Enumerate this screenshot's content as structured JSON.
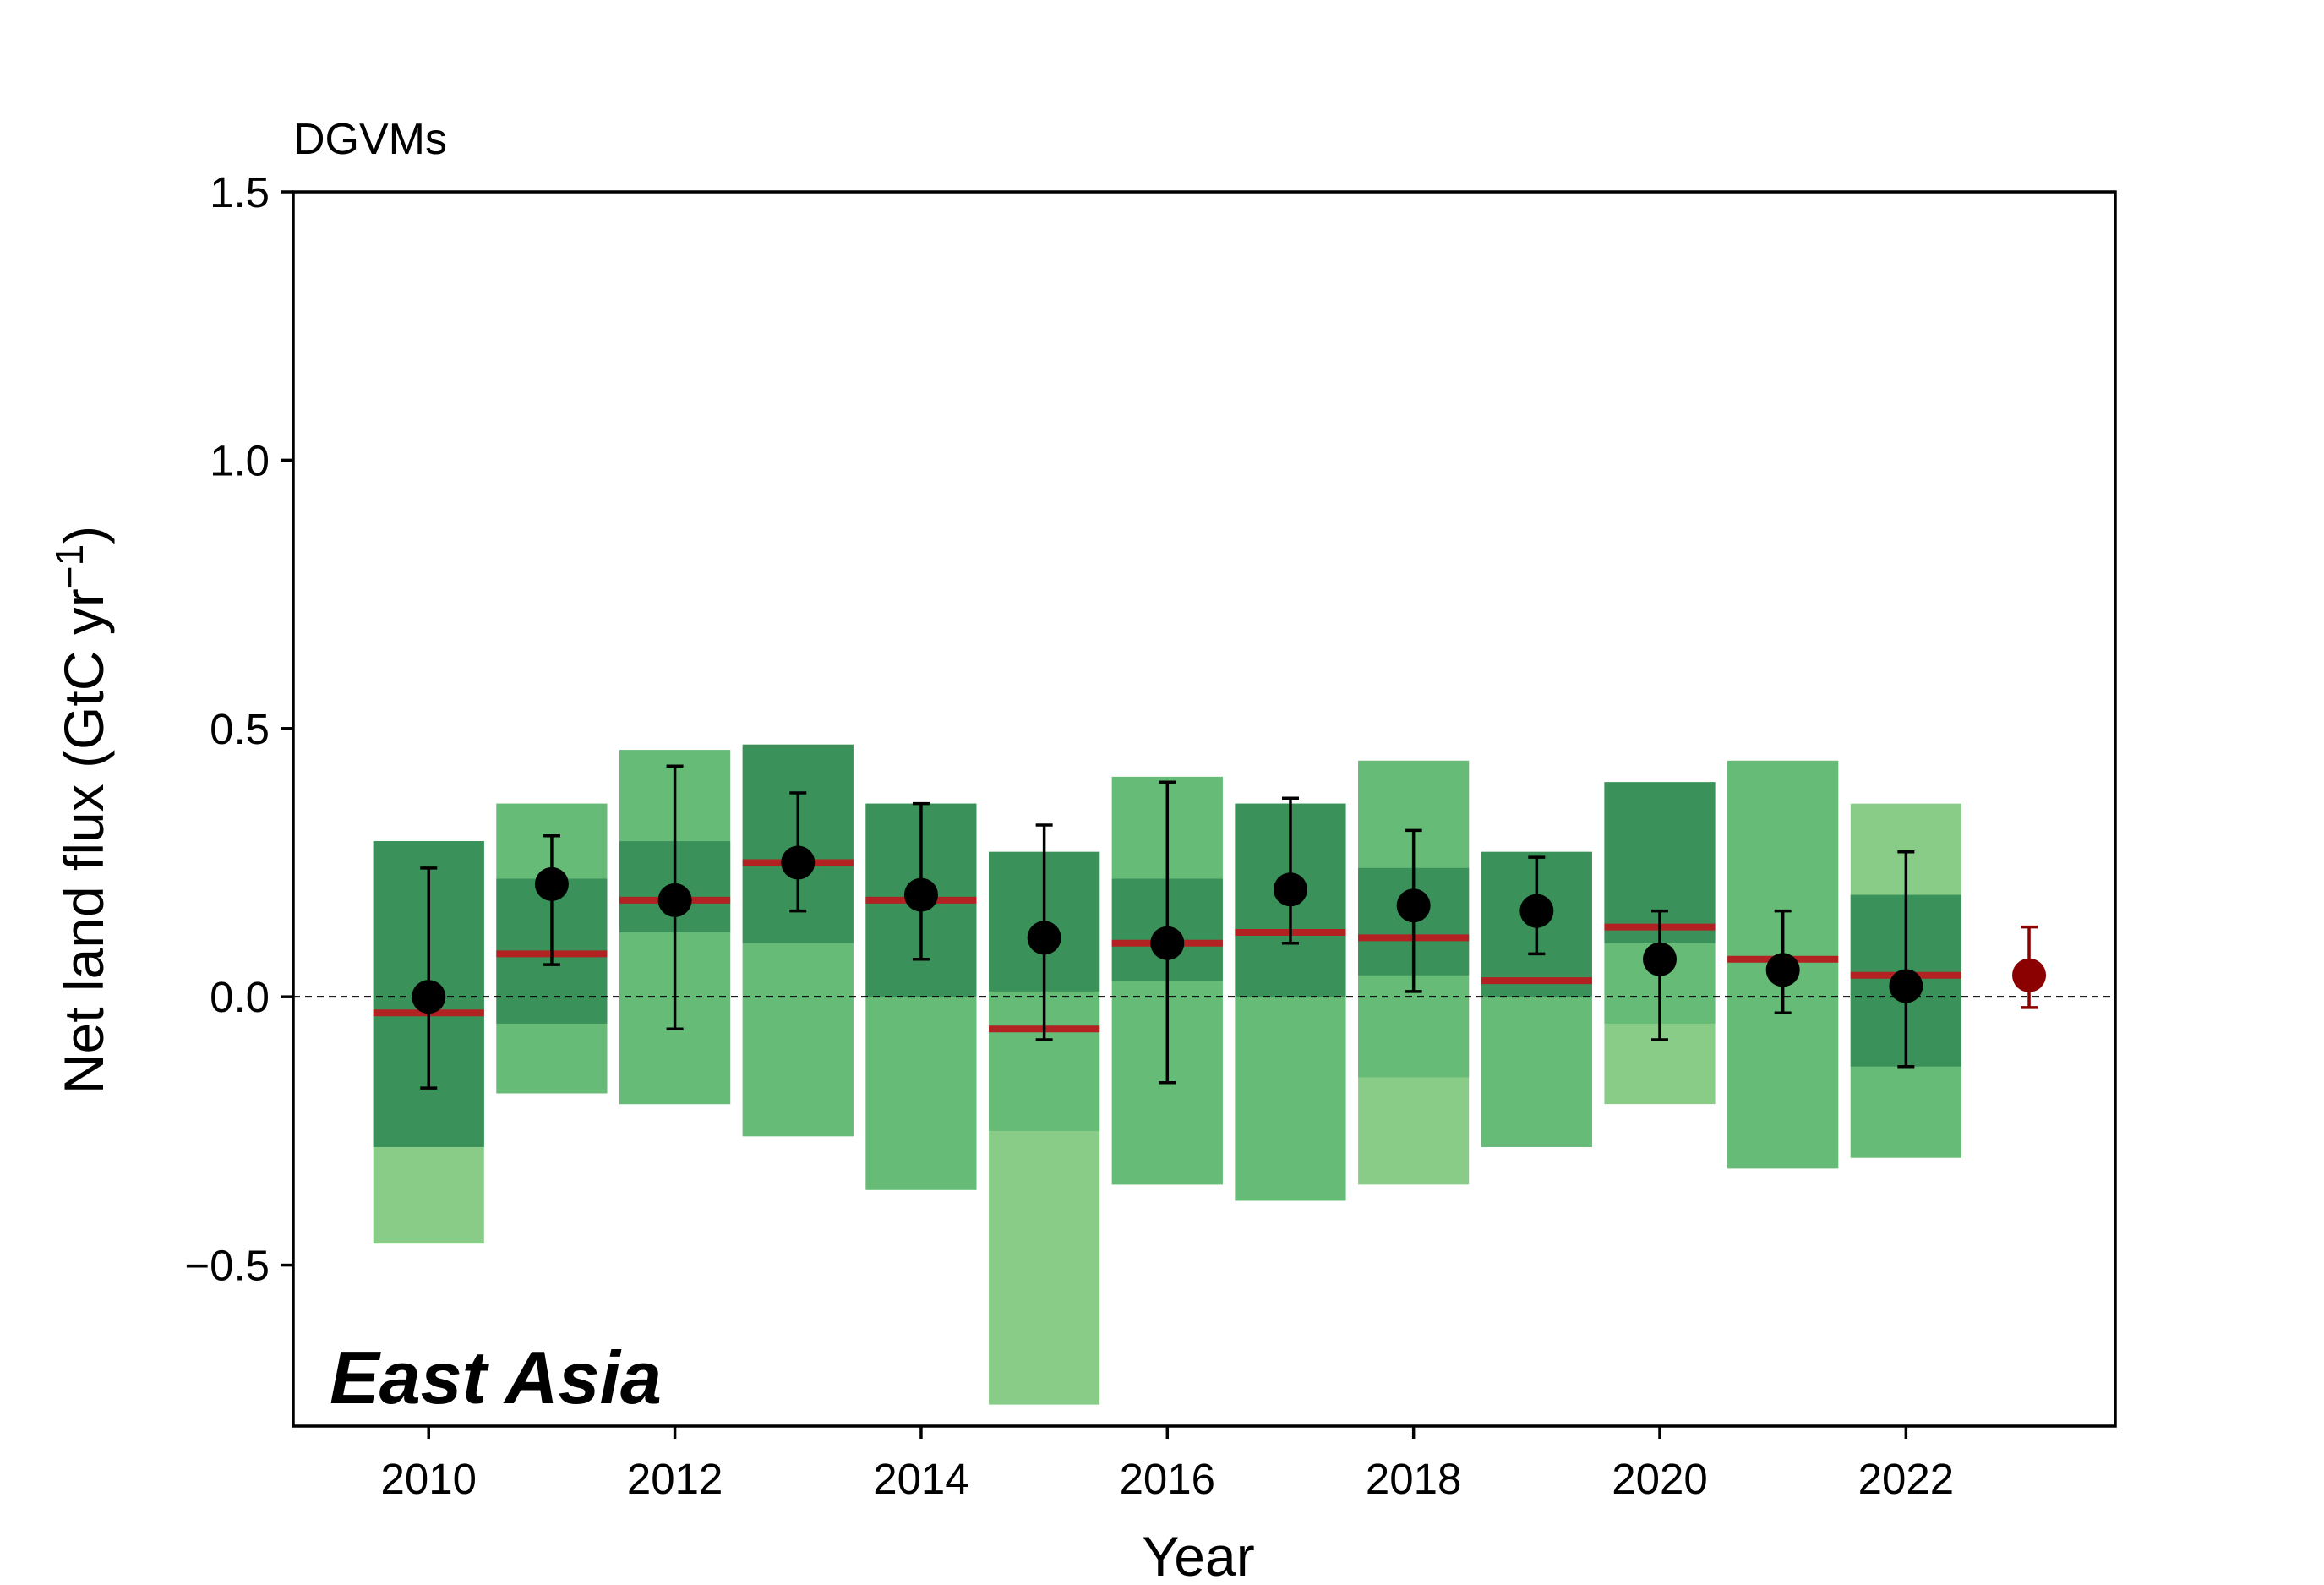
{
  "chart_data": {
    "type": "bar",
    "title": "DGVMs",
    "xlabel": "Year",
    "ylabel": "Net land flux (GtC yr",
    "ylabel_sup": "−1",
    "ylabel_close": ")",
    "region_label": "East Asia",
    "xlim": [
      2008.9,
      2023.7
    ],
    "ylim": [
      -0.8,
      1.5
    ],
    "x_ticks": [
      2010,
      2012,
      2014,
      2016,
      2018,
      2020,
      2022
    ],
    "x_tick_labels": [
      "2010",
      "2012",
      "2014",
      "2016",
      "2018",
      "2020",
      "2022"
    ],
    "y_ticks": [
      -0.5,
      0.0,
      0.5,
      1.0,
      1.5
    ],
    "y_tick_labels": [
      "−0.5",
      "0.0",
      "0.5",
      "1.0",
      "1.5"
    ],
    "zero_line": 0.0,
    "bar_width": 0.9,
    "colors": {
      "outer_range": "#88cc88",
      "mid_range": "#66bb77",
      "inner_range": "#3a915a",
      "median": "#b22222",
      "mean_marker": "#000000",
      "latest_marker": "#8b0000",
      "region_label": "#b22222"
    },
    "years": [
      2010,
      2011,
      2012,
      2013,
      2014,
      2015,
      2016,
      2017,
      2018,
      2019,
      2020,
      2021,
      2022
    ],
    "outer_range": [
      [
        -0.46,
        0.29
      ],
      [
        -0.18,
        0.36
      ],
      [
        -0.2,
        0.46
      ],
      [
        -0.26,
        0.47
      ],
      [
        -0.36,
        0.36
      ],
      [
        -0.76,
        0.27
      ],
      [
        -0.35,
        0.41
      ],
      [
        -0.38,
        0.36
      ],
      [
        -0.35,
        0.44
      ],
      [
        -0.28,
        0.27
      ],
      [
        -0.2,
        0.4
      ],
      [
        -0.32,
        0.44
      ],
      [
        -0.3,
        0.36
      ]
    ],
    "mid_range": [
      [
        -0.28,
        0.29
      ],
      [
        -0.18,
        0.36
      ],
      [
        -0.2,
        0.46
      ],
      [
        -0.26,
        0.47
      ],
      [
        -0.36,
        0.36
      ],
      [
        -0.25,
        0.27
      ],
      [
        -0.35,
        0.41
      ],
      [
        -0.38,
        0.36
      ],
      [
        -0.15,
        0.44
      ],
      [
        -0.28,
        0.27
      ],
      [
        -0.05,
        0.4
      ],
      [
        -0.32,
        0.44
      ],
      [
        -0.3,
        0.19
      ]
    ],
    "inner_range": [
      [
        -0.28,
        0.29
      ],
      [
        -0.05,
        0.22
      ],
      [
        0.12,
        0.29
      ],
      [
        0.1,
        0.47
      ],
      [
        0.0,
        0.36
      ],
      [
        0.01,
        0.27
      ],
      [
        0.03,
        0.22
      ],
      [
        0.0,
        0.36
      ],
      [
        0.04,
        0.24
      ],
      [
        0.0,
        0.27
      ],
      [
        0.1,
        0.4
      ],
      [
        0.07,
        0.07
      ],
      [
        -0.13,
        0.19
      ]
    ],
    "median": [
      -0.03,
      0.08,
      0.18,
      0.25,
      0.18,
      -0.06,
      0.1,
      0.12,
      0.11,
      0.03,
      0.13,
      0.07,
      0.04
    ],
    "mean": [
      0.0,
      0.21,
      0.18,
      0.25,
      0.19,
      0.11,
      0.1,
      0.2,
      0.17,
      0.16,
      0.07,
      0.05,
      0.02
    ],
    "error_low": [
      -0.17,
      0.06,
      -0.06,
      0.16,
      0.07,
      -0.08,
      -0.16,
      0.1,
      0.01,
      0.08,
      -0.08,
      -0.03,
      -0.13
    ],
    "error_high": [
      0.24,
      0.3,
      0.43,
      0.38,
      0.36,
      0.32,
      0.4,
      0.37,
      0.31,
      0.26,
      0.16,
      0.16,
      0.27
    ],
    "latest": {
      "year": 2023,
      "value": 0.04,
      "error_low": -0.02,
      "error_high": 0.13
    }
  }
}
